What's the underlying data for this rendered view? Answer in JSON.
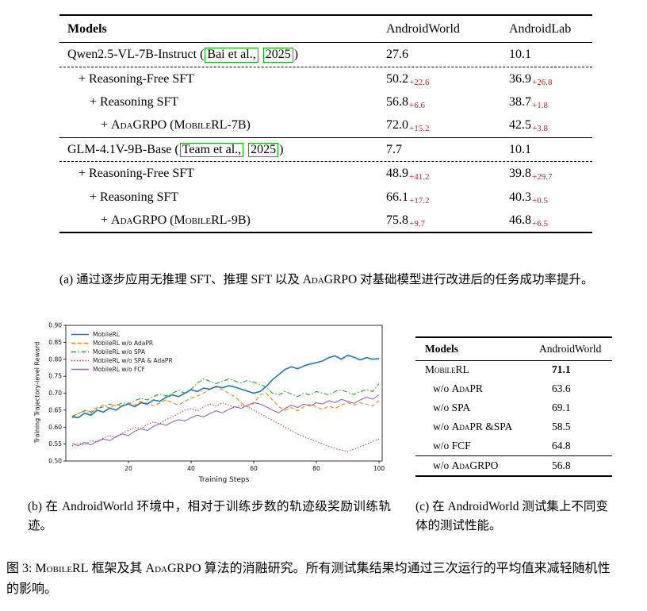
{
  "colors": {
    "accent_green": "#00bb00",
    "delta_red": "#bb2222",
    "rule": "#000000"
  },
  "table_a": {
    "headers": {
      "models": "Models",
      "col1": "AndroidWorld",
      "col2": "AndroidLab"
    },
    "rows": [
      {
        "type": "base",
        "level": 0,
        "label": [
          {
            "t": "Qwen2.5-VL-7B-Instruct ("
          },
          {
            "t": "Bai et al.,",
            "box": true
          },
          {
            "t": " "
          },
          {
            "t": "2025",
            "box": true
          },
          {
            "t": ")"
          }
        ],
        "v1": "27.6",
        "d1": "",
        "v2": "10.1",
        "d2": ""
      },
      {
        "type": "step",
        "level": 1,
        "rule_above": "dashed",
        "label": [
          {
            "t": "+ Reasoning-Free SFT"
          }
        ],
        "v1": "50.2",
        "d1": "+22.6",
        "v2": "36.9",
        "d2": "+26.8"
      },
      {
        "type": "step",
        "level": 2,
        "label": [
          {
            "t": "+ Reasoning SFT"
          }
        ],
        "v1": "56.8",
        "d1": "+6.6",
        "v2": "38.7",
        "d2": "+1.8"
      },
      {
        "type": "step",
        "level": 3,
        "label": [
          {
            "t": "+ "
          },
          {
            "t": "AdaGRPO (MobileRL-7B)",
            "sc": true
          }
        ],
        "v1": "72.0",
        "d1": "+15.2",
        "v2": "42.5",
        "d2": "+3.8"
      },
      {
        "type": "base",
        "level": 0,
        "rule_above": "solid",
        "label": [
          {
            "t": "GLM-4.1V-9B-Base ("
          },
          {
            "t": "Team et al.,",
            "box": true
          },
          {
            "t": " "
          },
          {
            "t": "2025",
            "box": true
          },
          {
            "t": ")"
          }
        ],
        "v1": "7.7",
        "d1": "",
        "v2": "10.1",
        "d2": ""
      },
      {
        "type": "step",
        "level": 1,
        "rule_above": "dashed",
        "label": [
          {
            "t": "+ Reasoning-Free SFT"
          }
        ],
        "v1": "48.9",
        "d1": "+41.2",
        "v2": "39.8",
        "d2": "+29.7"
      },
      {
        "type": "step",
        "level": 2,
        "label": [
          {
            "t": "+ Reasoning SFT"
          }
        ],
        "v1": "66.1",
        "d1": "+17.2",
        "v2": "40.3",
        "d2": "+0.5"
      },
      {
        "type": "step",
        "level": 3,
        "label": [
          {
            "t": "+ "
          },
          {
            "t": "AdaGRPO (MobileRL-9B)",
            "sc": true
          }
        ],
        "v1": "75.8",
        "d1": "+9.7",
        "v2": "46.8",
        "d2": "+6.5"
      }
    ]
  },
  "caption_a": [
    {
      "t": "(a) 通过逐步应用无推理 SFT、推理 SFT 以及 "
    },
    {
      "t": "AdaGRPO",
      "sc": true
    },
    {
      "t": " 对基础模型进行改进后的任务成功率提升。"
    }
  ],
  "chart_data": {
    "type": "line",
    "title": "",
    "xlabel": "Training Steps",
    "ylabel": "Training Trajectory-level Reward",
    "xlim": [
      0,
      101
    ],
    "ylim": [
      0.5,
      0.9
    ],
    "xticks": [
      20,
      40,
      60,
      80,
      100
    ],
    "yticks": [
      0.5,
      0.55,
      0.6,
      0.65,
      0.7,
      0.75,
      0.8,
      0.85,
      0.9
    ],
    "grid": false,
    "legend_position": "upper left",
    "x_start": 2,
    "x_step": 2,
    "series": [
      {
        "name": "MobileRL",
        "color": "#1f77b4",
        "style": "solid",
        "values": [
          0.63,
          0.628,
          0.641,
          0.635,
          0.65,
          0.644,
          0.656,
          0.65,
          0.663,
          0.668,
          0.66,
          0.672,
          0.668,
          0.68,
          0.676,
          0.688,
          0.695,
          0.69,
          0.7,
          0.71,
          0.705,
          0.715,
          0.712,
          0.72,
          0.716,
          0.722,
          0.718,
          0.712,
          0.706,
          0.7,
          0.705,
          0.72,
          0.74,
          0.755,
          0.77,
          0.778,
          0.772,
          0.78,
          0.786,
          0.79,
          0.795,
          0.805,
          0.81,
          0.8,
          0.812,
          0.806,
          0.798,
          0.805,
          0.8,
          0.802
        ]
      },
      {
        "name": "MobileRL w/o AdaPR",
        "color": "#ff7f0e",
        "style": "dashed",
        "values": [
          0.628,
          0.64,
          0.65,
          0.645,
          0.658,
          0.665,
          0.655,
          0.668,
          0.66,
          0.672,
          0.665,
          0.676,
          0.67,
          0.662,
          0.672,
          0.68,
          0.672,
          0.665,
          0.676,
          0.685,
          0.692,
          0.7,
          0.712,
          0.718,
          0.71,
          0.7,
          0.69,
          0.672,
          0.66,
          0.67,
          0.695,
          0.7,
          0.68,
          0.66,
          0.65,
          0.658,
          0.648,
          0.66,
          0.668,
          0.66,
          0.652,
          0.662,
          0.655,
          0.665,
          0.672,
          0.665,
          0.672,
          0.668,
          0.662,
          0.678
        ]
      },
      {
        "name": "MobileRL w/o SPA",
        "color": "#2ca02c",
        "style": "dashdot",
        "values": [
          0.632,
          0.64,
          0.648,
          0.642,
          0.655,
          0.66,
          0.668,
          0.662,
          0.672,
          0.668,
          0.678,
          0.685,
          0.68,
          0.69,
          0.698,
          0.692,
          0.7,
          0.708,
          0.7,
          0.712,
          0.73,
          0.742,
          0.735,
          0.728,
          0.735,
          0.742,
          0.736,
          0.73,
          0.738,
          0.732,
          0.726,
          0.718,
          0.7,
          0.695,
          0.705,
          0.698,
          0.69,
          0.7,
          0.695,
          0.705,
          0.7,
          0.695,
          0.705,
          0.71,
          0.702,
          0.696,
          0.705,
          0.71,
          0.705,
          0.728
        ]
      },
      {
        "name": "MobileRL w/o SPA & AdaPR",
        "color": "#d62728",
        "style": "dotted",
        "values": [
          0.545,
          0.552,
          0.548,
          0.56,
          0.556,
          0.568,
          0.575,
          0.57,
          0.582,
          0.59,
          0.6,
          0.595,
          0.608,
          0.615,
          0.61,
          0.622,
          0.63,
          0.64,
          0.65,
          0.655,
          0.648,
          0.66,
          0.668,
          0.662,
          0.672,
          0.665,
          0.658,
          0.665,
          0.66,
          0.65,
          0.64,
          0.63,
          0.62,
          0.61,
          0.6,
          0.59,
          0.58,
          0.572,
          0.565,
          0.558,
          0.55,
          0.543,
          0.537,
          0.532,
          0.528,
          0.535,
          0.542,
          0.55,
          0.558,
          0.565
        ]
      },
      {
        "name": "MobileRL w/o FCF",
        "color": "#9467bd",
        "style": "solid",
        "values": [
          0.552,
          0.545,
          0.555,
          0.548,
          0.558,
          0.565,
          0.56,
          0.572,
          0.58,
          0.575,
          0.588,
          0.595,
          0.59,
          0.602,
          0.61,
          0.605,
          0.615,
          0.622,
          0.618,
          0.628,
          0.635,
          0.63,
          0.64,
          0.648,
          0.642,
          0.652,
          0.66,
          0.655,
          0.665,
          0.672,
          0.668,
          0.66,
          0.65,
          0.642,
          0.655,
          0.665,
          0.658,
          0.668,
          0.662,
          0.672,
          0.668,
          0.678,
          0.672,
          0.682,
          0.676,
          0.67,
          0.68,
          0.688,
          0.682,
          0.695
        ]
      }
    ]
  },
  "caption_b": [
    {
      "t": "(b) 在 AndroidWorld 环境中，相对于训练步数的轨迹级奖励训练轨迹。"
    }
  ],
  "table_c": {
    "headers": {
      "models": "Models",
      "col": "AndroidWorld"
    },
    "rows": [
      {
        "label": [
          {
            "t": "MobileRL",
            "sc": true
          }
        ],
        "value": "71.1",
        "bold": true,
        "indent": 0
      },
      {
        "label": [
          {
            "t": "w/o "
          },
          {
            "t": "AdaPR",
            "sc": true
          }
        ],
        "value": "63.6",
        "indent": 1
      },
      {
        "label": [
          {
            "t": "w/o SPA"
          }
        ],
        "value": "69.1",
        "indent": 1
      },
      {
        "label": [
          {
            "t": "w/o "
          },
          {
            "t": "AdaPR",
            "sc": true
          },
          {
            "t": " &SPA"
          }
        ],
        "value": "58.5",
        "indent": 1
      },
      {
        "label": [
          {
            "t": "w/o FCF"
          }
        ],
        "value": "64.8",
        "indent": 1
      },
      {
        "label": [
          {
            "t": "w/o "
          },
          {
            "t": "AdaGRPO",
            "sc": true
          }
        ],
        "value": "56.8",
        "indent": 1,
        "rule_above": "solid"
      }
    ]
  },
  "caption_c": [
    {
      "t": "(c) 在 AndroidWorld 测试集上不同变体的测试性能。"
    }
  ],
  "figure_caption": [
    {
      "t": "图 3: "
    },
    {
      "t": "MobileRL",
      "sc": true
    },
    {
      "t": " 框架及其 "
    },
    {
      "t": "AdaGRPO",
      "sc": true
    },
    {
      "t": " 算法的消融研究。所有测试集结果均通过三次运行的平均值来减轻随机性的影响。"
    }
  ]
}
